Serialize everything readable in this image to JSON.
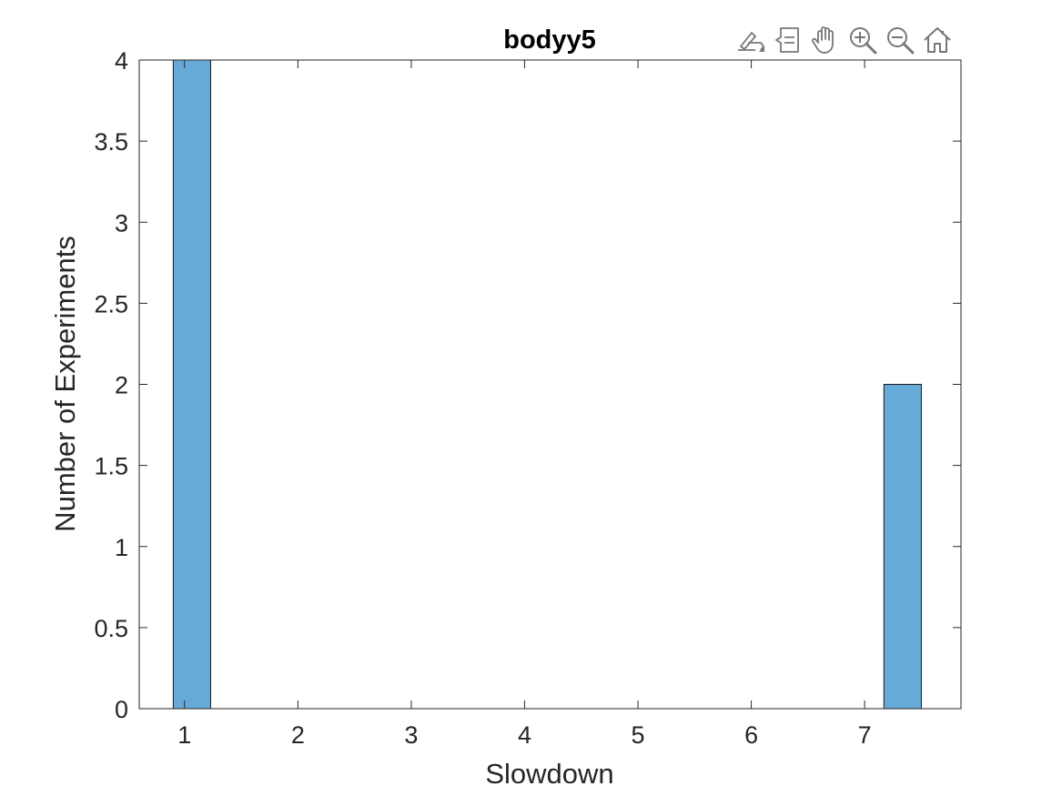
{
  "toolbar": {
    "icons": [
      "brush-export-icon",
      "data-tips-icon",
      "pan-hand-icon",
      "zoom-in-icon",
      "zoom-out-icon",
      "home-restore-icon"
    ]
  },
  "chart_data": {
    "type": "bar",
    "title": "bodyy5",
    "xlabel": "Slowdown",
    "ylabel": "Number of Experiments",
    "xlim": [
      0.6,
      7.85
    ],
    "ylim": [
      0,
      4
    ],
    "xticks": [
      1,
      2,
      3,
      4,
      5,
      6,
      7
    ],
    "yticks": [
      0,
      0.5,
      1,
      1.5,
      2,
      2.5,
      3,
      3.5,
      4
    ],
    "bins": [
      {
        "x0": 0.9,
        "x1": 1.23,
        "value": 4
      },
      {
        "x0": 7.17,
        "x1": 7.5,
        "value": 2
      }
    ],
    "grid": false,
    "bar_color": "#66aad8",
    "edge_color": "#1a1a1a"
  }
}
